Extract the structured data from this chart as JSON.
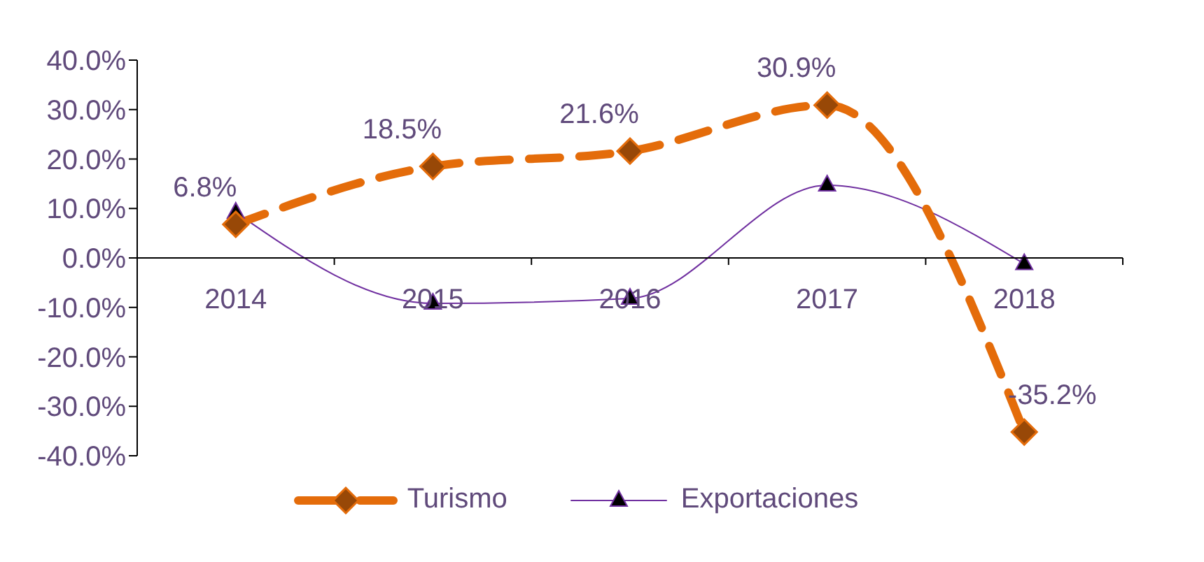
{
  "chart_data": {
    "type": "line",
    "categories": [
      "2014",
      "2015",
      "2016",
      "2017",
      "2018"
    ],
    "series": [
      {
        "name": "Turismo",
        "color": "#e46c0a",
        "values": [
          6.8,
          18.5,
          21.6,
          30.9,
          -35.2
        ],
        "value_labels": [
          "6.8%",
          "18.5%",
          "21.6%",
          "30.9%",
          "-35.2%"
        ],
        "marker": "diamond",
        "line_style": "dashed"
      },
      {
        "name": "Exportaciones",
        "color": "#7030a0",
        "values": [
          9.2,
          -9.2,
          -8.2,
          14.7,
          -1.2
        ],
        "marker": "triangle",
        "line_style": "solid"
      }
    ],
    "ylim": [
      -40,
      40
    ],
    "yticks": [
      {
        "value": -40,
        "label": "-40.0%"
      },
      {
        "value": -30,
        "label": "-30.0%"
      },
      {
        "value": -20,
        "label": "-20.0%"
      },
      {
        "value": -10,
        "label": "-10.0%"
      },
      {
        "value": 0,
        "label": "0.0%"
      },
      {
        "value": 10,
        "label": "10.0%"
      },
      {
        "value": 20,
        "label": "20.0%"
      },
      {
        "value": 30,
        "label": "30.0%"
      },
      {
        "value": 40,
        "label": "40.0%"
      }
    ],
    "grid": false,
    "legend": "bottom"
  }
}
